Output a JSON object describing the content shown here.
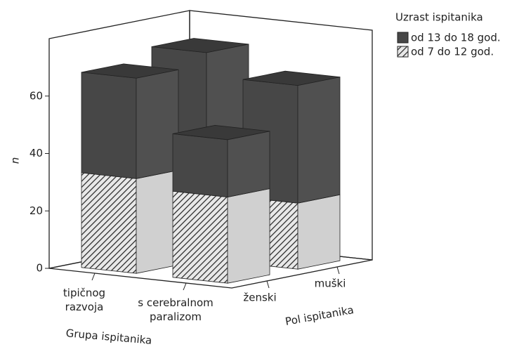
{
  "chart_data": {
    "type": "bar3d-stacked",
    "y_label": "n",
    "x_label": "Grupa ispitanika",
    "z_label": "Pol ispitanika",
    "categories": [
      "tipičnog\nrazvoja",
      "s cerebralnom\nparalizom"
    ],
    "depth_categories": [
      "ženski",
      "muški"
    ],
    "legend_title": "Uzrast ispitanika",
    "series": [
      {
        "name": "od 7 do 12 god.",
        "color": "#d0d0d0",
        "hatch": true,
        "values": [
          [
            33,
            30
          ],
          [
            30,
            23
          ]
        ]
      },
      {
        "name": "od 13 do 18 god.",
        "color": "#474747",
        "hatch": false,
        "values": [
          [
            35,
            42
          ],
          [
            20,
            41
          ]
        ]
      }
    ],
    "ylim": [
      0,
      80
    ],
    "yticks": [
      0,
      20,
      40,
      60
    ]
  }
}
